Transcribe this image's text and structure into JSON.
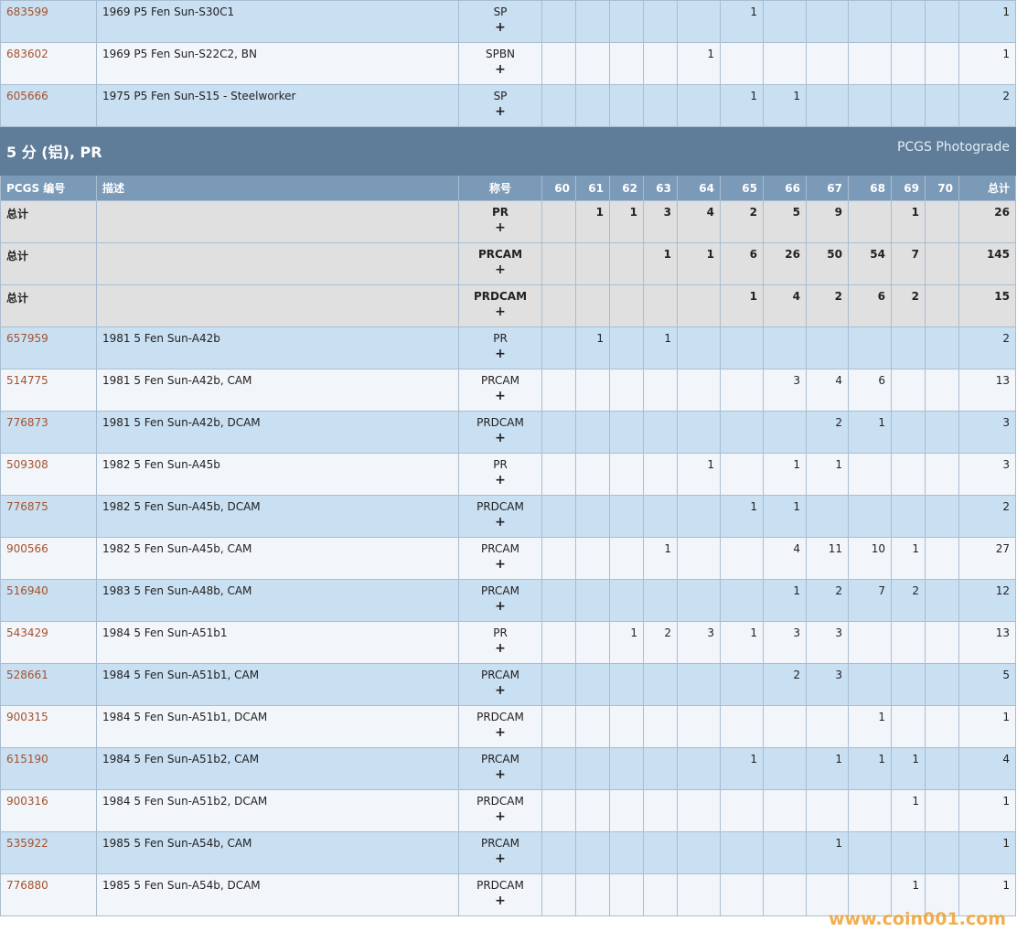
{
  "expand_label": "+",
  "watermark": "www.coin001.com",
  "top_rows": [
    {
      "id": "683599",
      "desc": "1969 P5 Fen Sun-S30C1",
      "designation": "SP",
      "grades": [
        null,
        null,
        null,
        null,
        null,
        1,
        null,
        null,
        null,
        null,
        null
      ],
      "total": 1
    },
    {
      "id": "683602",
      "desc": "1969 P5 Fen Sun-S22C2, BN",
      "designation": "SPBN",
      "grades": [
        null,
        null,
        null,
        null,
        1,
        null,
        null,
        null,
        null,
        null,
        null
      ],
      "total": 1
    },
    {
      "id": "605666",
      "desc": "1975 P5 Fen Sun-S15 - Steelworker",
      "designation": "SP",
      "grades": [
        null,
        null,
        null,
        null,
        null,
        1,
        1,
        null,
        null,
        null,
        null
      ],
      "total": 2
    }
  ],
  "section": {
    "title": "5 分 (铝), PR",
    "right": "PCGS Photograde",
    "columns": [
      "PCGS 编号",
      "描述",
      "称号",
      "60",
      "61",
      "62",
      "63",
      "64",
      "65",
      "66",
      "67",
      "68",
      "69",
      "70",
      "总计"
    ],
    "totals": [
      {
        "label": "总计",
        "designation": "PR",
        "grades": [
          null,
          1,
          1,
          3,
          4,
          2,
          5,
          9,
          null,
          1,
          null
        ],
        "total": 26
      },
      {
        "label": "总计",
        "designation": "PRCAM",
        "grades": [
          null,
          null,
          null,
          1,
          1,
          6,
          26,
          50,
          54,
          7,
          null
        ],
        "total": 145
      },
      {
        "label": "总计",
        "designation": "PRDCAM",
        "grades": [
          null,
          null,
          null,
          null,
          null,
          1,
          4,
          2,
          6,
          2,
          null
        ],
        "total": 15
      }
    ],
    "rows": [
      {
        "id": "657959",
        "desc": "1981 5 Fen Sun-A42b",
        "designation": "PR",
        "grades": [
          null,
          1,
          null,
          1,
          null,
          null,
          null,
          null,
          null,
          null,
          null
        ],
        "total": 2
      },
      {
        "id": "514775",
        "desc": "1981 5 Fen Sun-A42b, CAM",
        "designation": "PRCAM",
        "grades": [
          null,
          null,
          null,
          null,
          null,
          null,
          3,
          4,
          6,
          null,
          null
        ],
        "total": 13
      },
      {
        "id": "776873",
        "desc": "1981 5 Fen Sun-A42b, DCAM",
        "designation": "PRDCAM",
        "grades": [
          null,
          null,
          null,
          null,
          null,
          null,
          null,
          2,
          1,
          null,
          null
        ],
        "total": 3
      },
      {
        "id": "509308",
        "desc": "1982 5 Fen Sun-A45b",
        "designation": "PR",
        "grades": [
          null,
          null,
          null,
          null,
          1,
          null,
          1,
          1,
          null,
          null,
          null
        ],
        "total": 3
      },
      {
        "id": "776875",
        "desc": "1982 5 Fen Sun-A45b, DCAM",
        "designation": "PRDCAM",
        "grades": [
          null,
          null,
          null,
          null,
          null,
          1,
          1,
          null,
          null,
          null,
          null
        ],
        "total": 2
      },
      {
        "id": "900566",
        "desc": "1982 5 Fen Sun-A45b, CAM",
        "designation": "PRCAM",
        "grades": [
          null,
          null,
          null,
          1,
          null,
          null,
          4,
          11,
          10,
          1,
          null
        ],
        "total": 27
      },
      {
        "id": "516940",
        "desc": "1983 5 Fen Sun-A48b, CAM",
        "designation": "PRCAM",
        "grades": [
          null,
          null,
          null,
          null,
          null,
          null,
          1,
          2,
          7,
          2,
          null
        ],
        "total": 12
      },
      {
        "id": "543429",
        "desc": "1984 5 Fen Sun-A51b1",
        "designation": "PR",
        "grades": [
          null,
          null,
          1,
          2,
          3,
          1,
          3,
          3,
          null,
          null,
          null
        ],
        "total": 13
      },
      {
        "id": "528661",
        "desc": "1984 5 Fen Sun-A51b1, CAM",
        "designation": "PRCAM",
        "grades": [
          null,
          null,
          null,
          null,
          null,
          null,
          2,
          3,
          null,
          null,
          null
        ],
        "total": 5
      },
      {
        "id": "900315",
        "desc": "1984 5 Fen Sun-A51b1, DCAM",
        "designation": "PRDCAM",
        "grades": [
          null,
          null,
          null,
          null,
          null,
          null,
          null,
          null,
          1,
          null,
          null
        ],
        "total": 1
      },
      {
        "id": "615190",
        "desc": "1984 5 Fen Sun-A51b2, CAM",
        "designation": "PRCAM",
        "grades": [
          null,
          null,
          null,
          null,
          null,
          1,
          null,
          1,
          1,
          1,
          null
        ],
        "total": 4
      },
      {
        "id": "900316",
        "desc": "1984 5 Fen Sun-A51b2, DCAM",
        "designation": "PRDCAM",
        "grades": [
          null,
          null,
          null,
          null,
          null,
          null,
          null,
          null,
          null,
          1,
          null
        ],
        "total": 1
      },
      {
        "id": "535922",
        "desc": "1985 5 Fen Sun-A54b, CAM",
        "designation": "PRCAM",
        "grades": [
          null,
          null,
          null,
          null,
          null,
          null,
          null,
          1,
          null,
          null,
          null
        ],
        "total": 1
      },
      {
        "id": "776880",
        "desc": "1985 5 Fen Sun-A54b, DCAM",
        "designation": "PRDCAM",
        "grades": [
          null,
          null,
          null,
          null,
          null,
          null,
          null,
          null,
          null,
          1,
          null
        ],
        "total": 1
      }
    ]
  }
}
